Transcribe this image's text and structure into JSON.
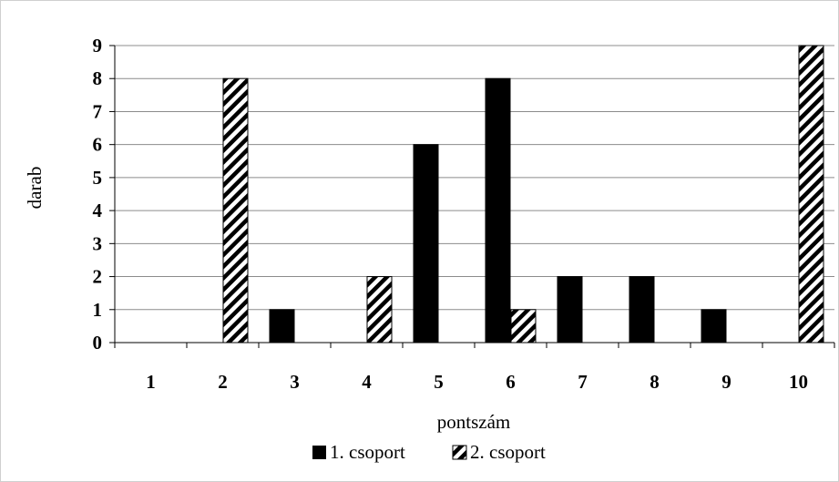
{
  "chart_data": {
    "type": "bar",
    "categories": [
      "1",
      "2",
      "3",
      "4",
      "5",
      "6",
      "7",
      "8",
      "9",
      "10"
    ],
    "series": [
      {
        "name": "1. csoport",
        "values": [
          0,
          0,
          1,
          0,
          6,
          8,
          2,
          2,
          1,
          0
        ],
        "fill": "#000000",
        "pattern": "solid"
      },
      {
        "name": "2. csoport",
        "values": [
          0,
          8,
          0,
          2,
          0,
          1,
          0,
          0,
          0,
          9
        ],
        "fill": "#000000",
        "pattern": "diagonal-hatch"
      }
    ],
    "xlabel": "pontszám",
    "ylabel": "darab",
    "ylim": [
      0,
      9
    ],
    "yticks": [
      "0",
      "1",
      "2",
      "3",
      "4",
      "5",
      "6",
      "7",
      "8",
      "9"
    ],
    "grid": true,
    "legend": "bottom"
  }
}
